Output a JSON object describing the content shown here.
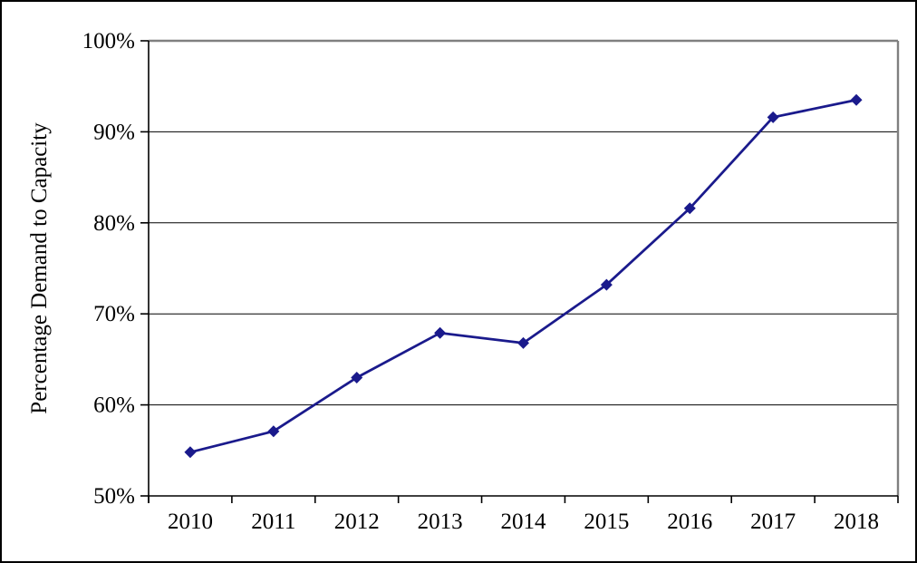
{
  "chart_data": {
    "type": "line",
    "categories": [
      "2010",
      "2011",
      "2012",
      "2013",
      "2014",
      "2015",
      "2016",
      "2017",
      "2018"
    ],
    "values": [
      54.8,
      57.1,
      63.0,
      67.9,
      66.8,
      73.2,
      81.6,
      91.6,
      93.5
    ],
    "title": "",
    "xlabel": "",
    "ylabel": "Percentage Demand to Capacity",
    "ylim": [
      50,
      100
    ],
    "yticks": [
      50,
      60,
      70,
      80,
      90,
      100
    ],
    "ytick_labels": [
      "50%",
      "60%",
      "70%",
      "80%",
      "90%",
      "100%"
    ],
    "grid": true,
    "legend": false,
    "marker": "diamond",
    "colors": {
      "line": "#1a1a8c",
      "marker": "#1a1a8c",
      "gridline": "#000000",
      "axis": "#000000",
      "plot_border": "#808080",
      "background": "#ffffff",
      "outer_border": "#000000"
    }
  }
}
